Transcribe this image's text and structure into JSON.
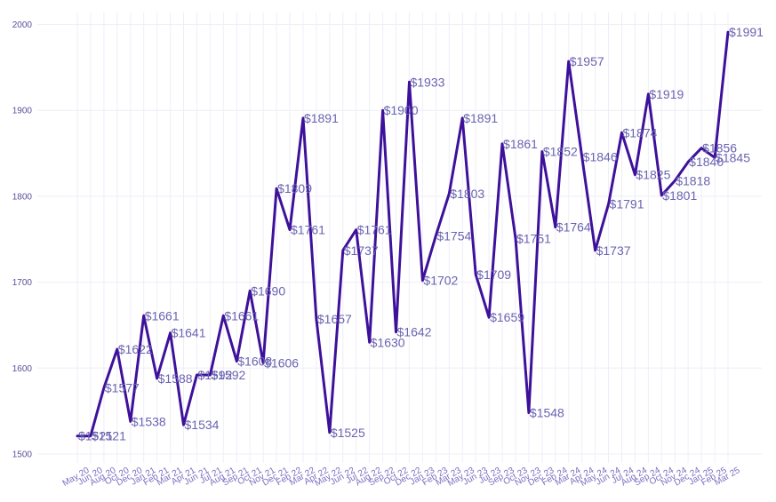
{
  "chart_data": {
    "type": "line",
    "title": "",
    "xlabel": "",
    "ylabel": "",
    "ylim": [
      1500,
      2000
    ],
    "yticks": [
      1500,
      1600,
      1700,
      1800,
      1900,
      2000
    ],
    "grid": true,
    "line_color": "#3e119b",
    "label_prefix": "$",
    "categories": [
      "May 20",
      "Jun 20",
      "Aug 20",
      "Oct 20",
      "Dec 20",
      "Jan 21",
      "Feb 21",
      "Mar 21",
      "Apr 21",
      "Jun 21",
      "Jul 21",
      "Aug 21",
      "Sep 21",
      "Oct 21",
      "Nov 21",
      "Dec 21",
      "Feb 22",
      "Mar 22",
      "Apr 22",
      "May 22",
      "Jun 22",
      "Jul 22",
      "Aug 22",
      "Sep 22",
      "Oct 22",
      "Dec 22",
      "Jan 23",
      "Feb 23",
      "Mar 23",
      "May 23",
      "Jun 23",
      "Jul 23",
      "Sep 23",
      "Oct 23",
      "Nov 23",
      "Dec 23",
      "Feb 24",
      "Mar 24",
      "Apr 24",
      "May 24",
      "Jun 24",
      "Jul 24",
      "Aug 24",
      "Sep 24",
      "Oct 24",
      "Nov 24",
      "Dec 24",
      "Jan 25",
      "Feb 25",
      "Mar 25"
    ],
    "values": [
      1521,
      1521,
      1577,
      1622,
      1538,
      1661,
      1588,
      1641,
      1534,
      1592,
      1592,
      1661,
      1608,
      1690,
      1606,
      1809,
      1761,
      1891,
      1657,
      1525,
      1737,
      1761,
      1630,
      1900,
      1642,
      1933,
      1702,
      1754,
      1803,
      1891,
      1709,
      1659,
      1861,
      1751,
      1548,
      1852,
      1764,
      1957,
      1846,
      1737,
      1791,
      1874,
      1825,
      1919,
      1801,
      1818,
      1840,
      1856,
      1845,
      1991
    ]
  }
}
